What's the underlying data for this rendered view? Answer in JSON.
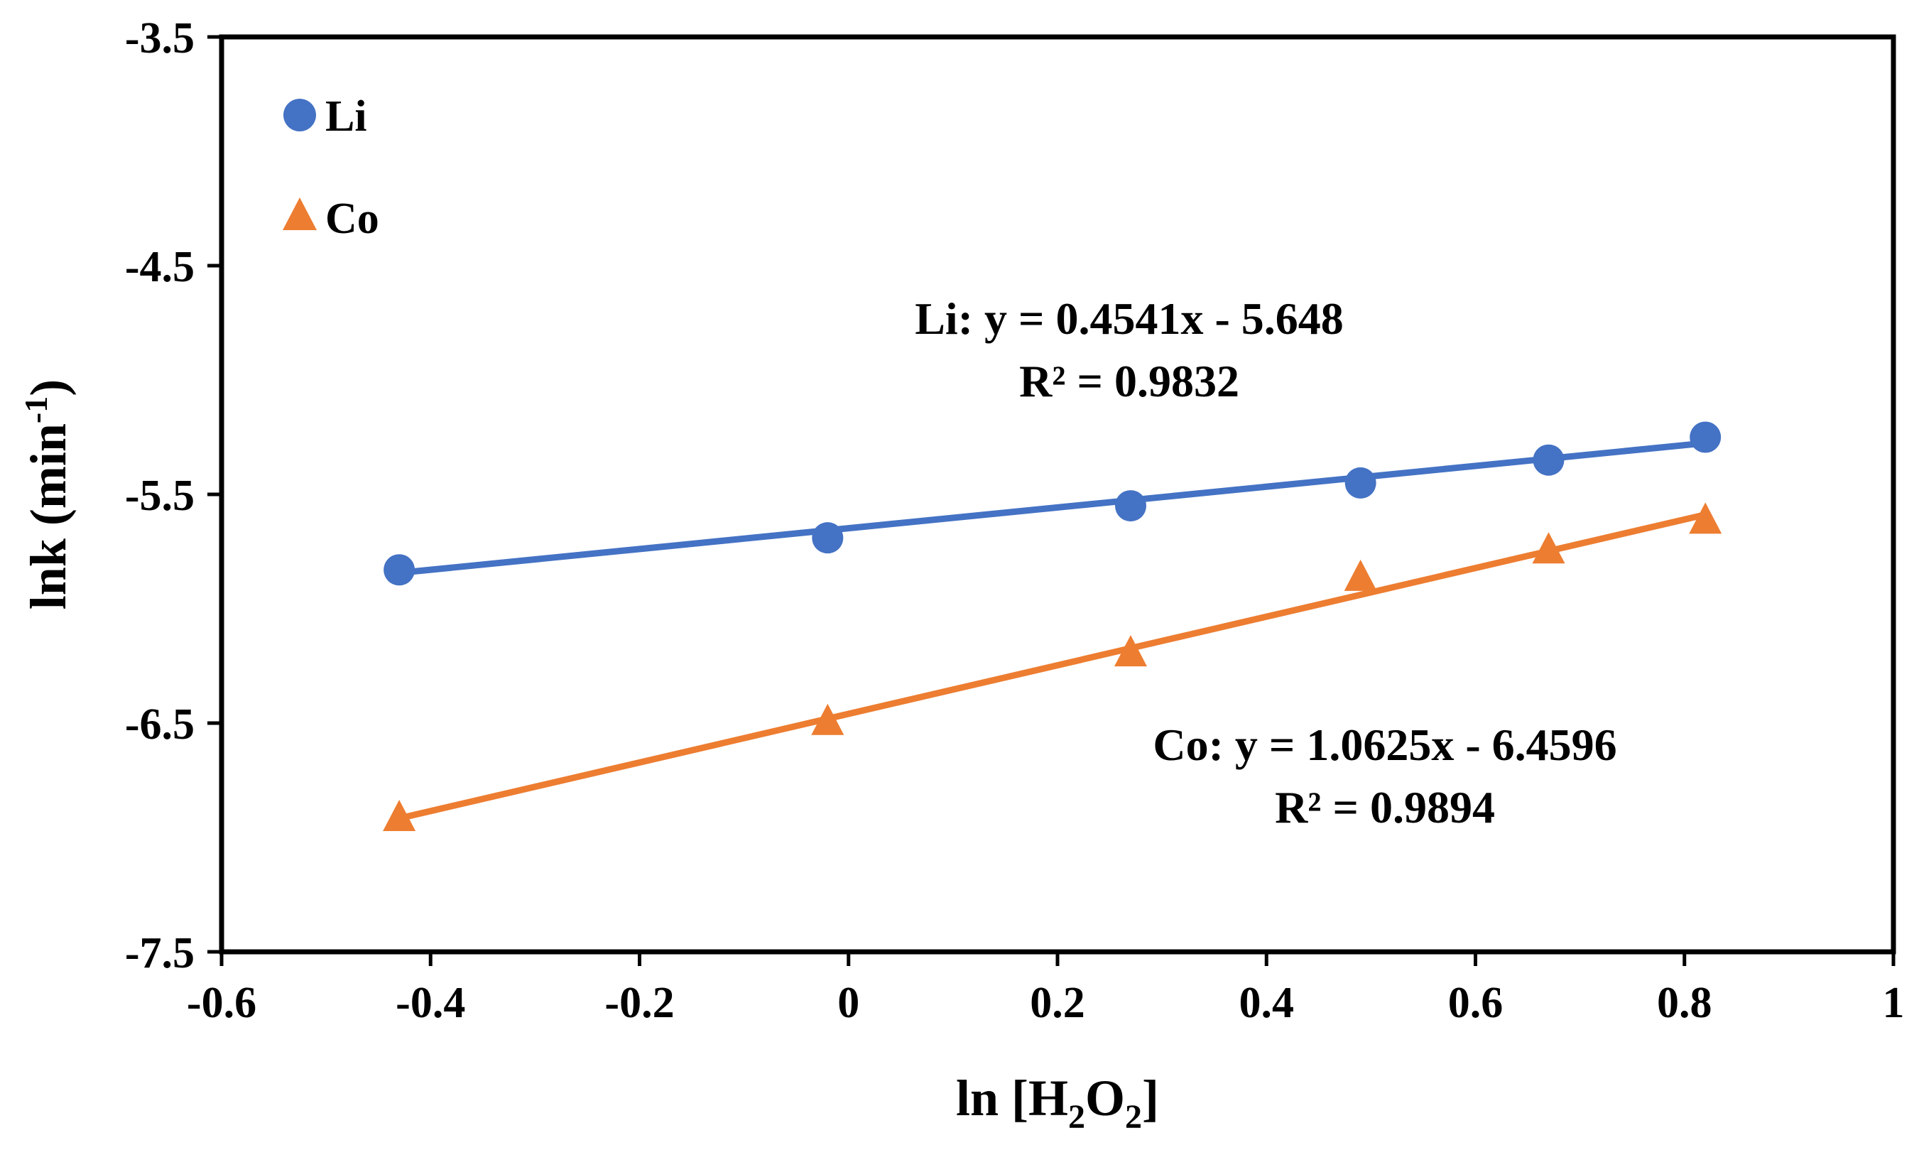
{
  "chart_data": {
    "type": "scatter",
    "title": "",
    "xlabel": "ln [H2O2]",
    "xlabel_parts": {
      "pre": "ln [H",
      "sub1": "2",
      "mid": "O",
      "sub2": "2",
      "post": "]"
    },
    "ylabel": "lnk (min-1)",
    "ylabel_parts": {
      "pre": "lnk (min",
      "sup": "-1",
      "post": ")"
    },
    "xlim": [
      -0.6,
      1
    ],
    "ylim": [
      -7.5,
      -3.5
    ],
    "xticks": [
      -0.6,
      -0.4,
      -0.2,
      0,
      0.2,
      0.4,
      0.6,
      0.8,
      1
    ],
    "xtick_labels": [
      "-0.6",
      "-0.4",
      "-0.2",
      "0",
      "0.2",
      "0.4",
      "0.6",
      "0.8",
      "1"
    ],
    "yticks": [
      -3.5,
      -4.5,
      -5.5,
      -6.5,
      -7.5
    ],
    "ytick_labels": [
      "-3.5",
      "-4.5",
      "-5.5",
      "-6.5",
      "-7.5"
    ],
    "grid": false,
    "legend_position": "top-left",
    "series": [
      {
        "name": "Li",
        "marker": "circle",
        "color": "#4472C4",
        "x": [
          -0.43,
          -0.02,
          0.27,
          0.49,
          0.67,
          0.82
        ],
        "y": [
          -5.83,
          -5.69,
          -5.55,
          -5.45,
          -5.35,
          -5.25
        ],
        "trendline": {
          "slope": 0.4541,
          "intercept": -5.648
        },
        "equation": "Li: y = 0.4541x - 5.648",
        "r2": "R² = 0.9832"
      },
      {
        "name": "Co",
        "marker": "triangle",
        "color": "#ED7D31",
        "x": [
          -0.43,
          -0.02,
          0.27,
          0.49,
          0.67,
          0.82
        ],
        "y": [
          -6.92,
          -6.5,
          -6.2,
          -5.87,
          -5.75,
          -5.62
        ],
        "trendline": {
          "slope": 1.0625,
          "intercept": -6.4596
        },
        "equation": "Co: y = 1.0625x - 6.4596",
        "r2": "R² = 0.9894"
      }
    ]
  }
}
